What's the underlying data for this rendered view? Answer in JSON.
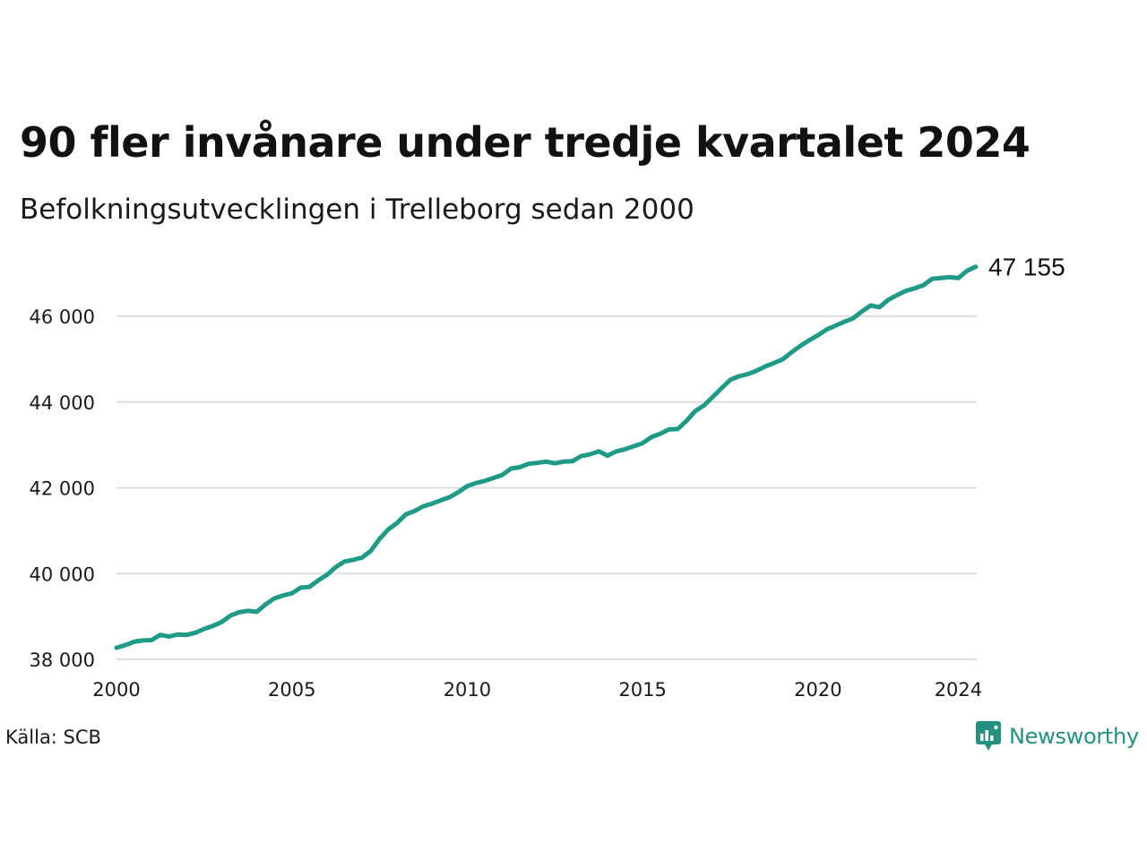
{
  "header": {
    "title": "90 fler invånare under tredje kvartalet 2024",
    "subtitle": "Befolkningsutvecklingen i Trelleborg sedan 2000"
  },
  "footer": {
    "source": "Källa: SCB",
    "brand": "Newsworthy",
    "brand_icon": "newsworthy-logo-icon"
  },
  "colors": {
    "line": "#1e9a86",
    "grid": "#dcdce2",
    "brand": "#24907f"
  },
  "chart_data": {
    "type": "line",
    "title": "90 fler invånare under tredje kvartalet 2024",
    "subtitle": "Befolkningsutvecklingen i Trelleborg sedan 2000",
    "xlabel": "",
    "ylabel": "",
    "xlim": [
      2000,
      2024.75
    ],
    "ylim": [
      38000,
      47200
    ],
    "x_ticks": [
      2000,
      2005,
      2010,
      2015,
      2020,
      2024
    ],
    "x_tick_labels": [
      "2000",
      "2005",
      "2010",
      "2015",
      "2020",
      "2024"
    ],
    "y_ticks": [
      38000,
      40000,
      42000,
      44000,
      46000
    ],
    "y_tick_labels": [
      "38 000",
      "40 000",
      "42 000",
      "44 000",
      "46 000"
    ],
    "grid": "horizontal",
    "end_label": "47 155",
    "series": [
      {
        "x": [
          2000.0,
          2000.25,
          2000.5,
          2000.75,
          2001.0,
          2001.25,
          2001.5,
          2001.75,
          2002.0,
          2002.25,
          2002.5,
          2002.75,
          2003.0,
          2003.25,
          2003.5,
          2003.75,
          2004.0,
          2004.25,
          2004.5,
          2004.75,
          2005.0,
          2005.25,
          2005.5,
          2005.75,
          2006.0,
          2006.25,
          2006.5,
          2006.75,
          2007.0,
          2007.25,
          2007.5,
          2007.75,
          2008.0,
          2008.25,
          2008.5,
          2008.75,
          2009.0,
          2009.25,
          2009.5,
          2009.75,
          2010.0,
          2010.25,
          2010.5,
          2010.75,
          2011.0,
          2011.25,
          2011.5,
          2011.75,
          2012.0,
          2012.25,
          2012.5,
          2012.75,
          2013.0,
          2013.25,
          2013.5,
          2013.75,
          2014.0,
          2014.25,
          2014.5,
          2014.75,
          2015.0,
          2015.25,
          2015.5,
          2015.75,
          2016.0,
          2016.25,
          2016.5,
          2016.75,
          2017.0,
          2017.25,
          2017.5,
          2017.75,
          2018.0,
          2018.25,
          2018.5,
          2018.75,
          2019.0,
          2019.25,
          2019.5,
          2019.75,
          2020.0,
          2020.25,
          2020.5,
          2020.75,
          2021.0,
          2021.25,
          2021.5,
          2021.75,
          2022.0,
          2022.25,
          2022.5,
          2022.75,
          2023.0,
          2023.25,
          2023.5,
          2023.75,
          2024.0,
          2024.25,
          2024.5
        ],
        "values": [
          38270,
          38330,
          38410,
          38440,
          38450,
          38570,
          38530,
          38580,
          38570,
          38620,
          38710,
          38780,
          38870,
          39020,
          39100,
          39130,
          39110,
          39280,
          39420,
          39490,
          39540,
          39670,
          39690,
          39840,
          39970,
          40150,
          40280,
          40320,
          40370,
          40530,
          40810,
          41030,
          41180,
          41380,
          41460,
          41570,
          41630,
          41710,
          41780,
          41900,
          42040,
          42110,
          42160,
          42230,
          42300,
          42450,
          42480,
          42560,
          42580,
          42610,
          42570,
          42610,
          42620,
          42740,
          42780,
          42850,
          42750,
          42850,
          42900,
          42970,
          43040,
          43180,
          43260,
          43360,
          43370,
          43560,
          43790,
          43920,
          44120,
          44320,
          44520,
          44600,
          44650,
          44730,
          44830,
          44910,
          45000,
          45160,
          45310,
          45440,
          45560,
          45690,
          45780,
          45870,
          45950,
          46110,
          46250,
          46210,
          46380,
          46490,
          46590,
          46650,
          46720,
          46870,
          46890,
          46910,
          46890,
          47060,
          47155
        ]
      }
    ]
  }
}
